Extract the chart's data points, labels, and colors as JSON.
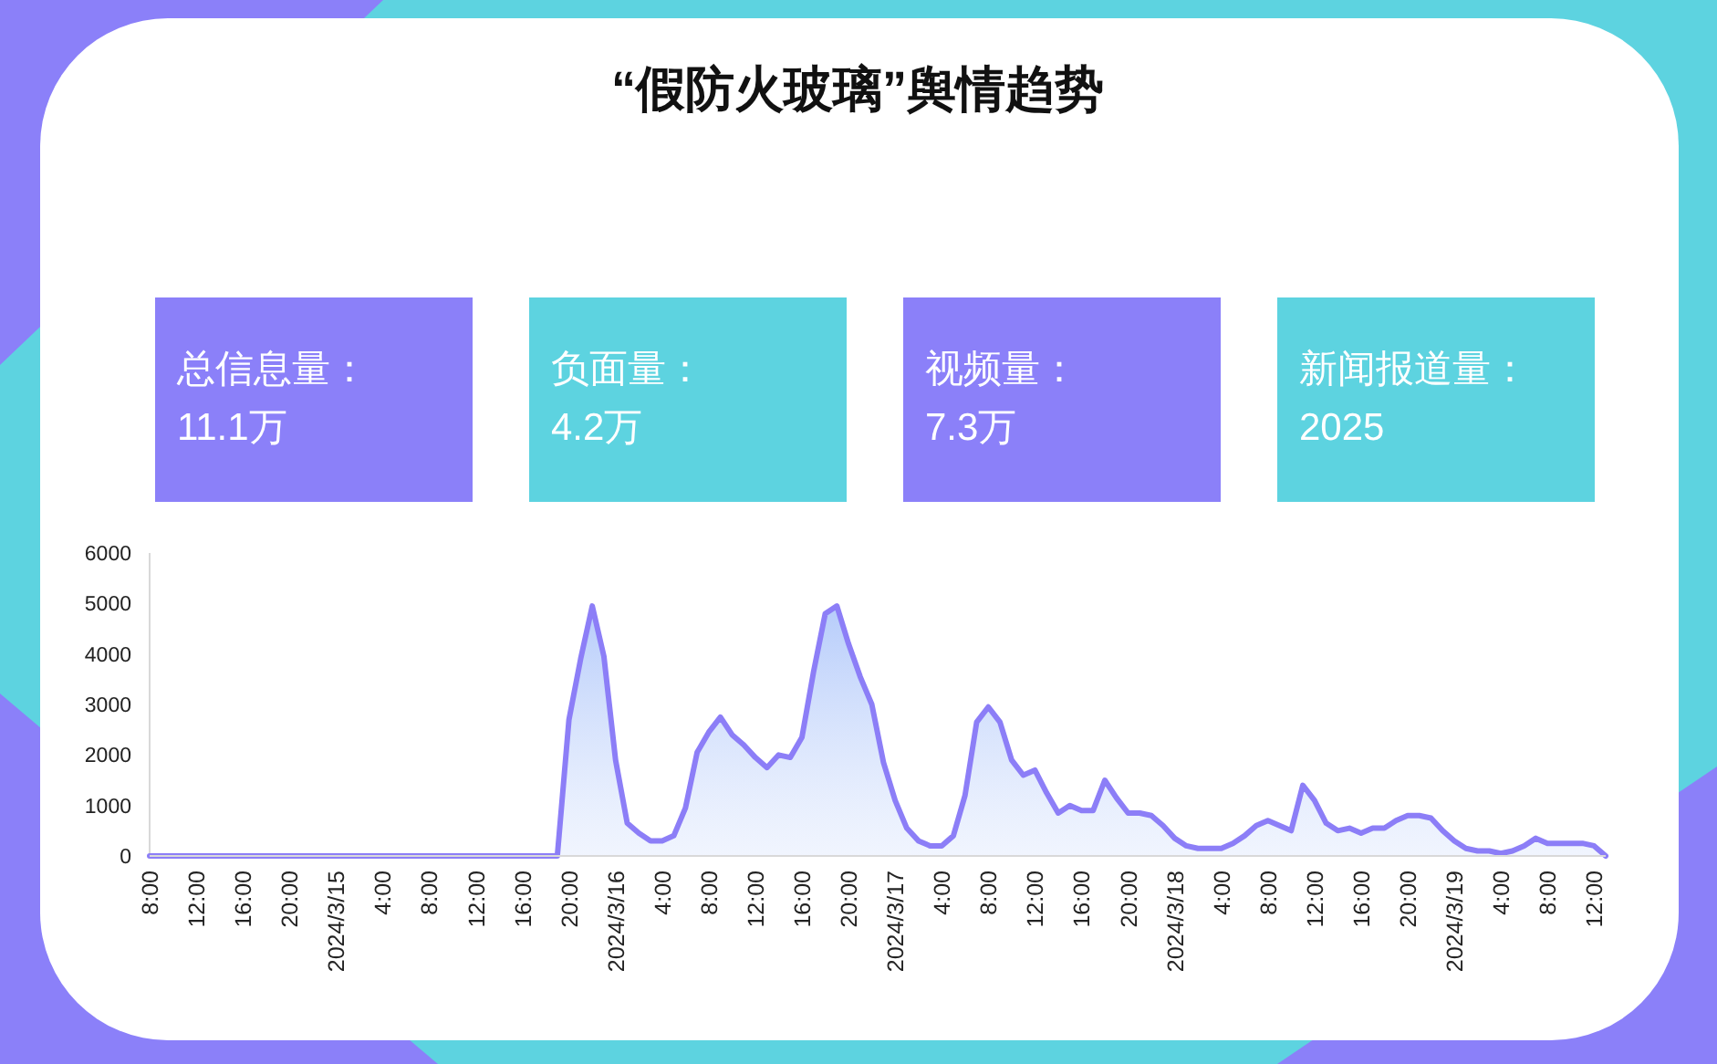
{
  "chart_data": [
    {
      "type": "other",
      "title": "“假防火玻璃”舆情趋势",
      "annotations": [
        "总信息量：",
        "11.1万",
        "负面量：",
        "4.2万",
        "视频量：",
        "7.3万",
        "新闻报道量：",
        "2025"
      ],
      "colors": [
        "#8b80f9",
        "#5dd3e0",
        "#8b80f9",
        "#5dd3e0"
      ]
    },
    {
      "type": "area",
      "x": [
        "2024-03-14T08:00",
        "2024-03-14T09:00",
        "2024-03-14T10:00",
        "2024-03-14T11:00",
        "2024-03-14T12:00",
        "2024-03-14T13:00",
        "2024-03-14T14:00",
        "2024-03-14T15:00",
        "2024-03-14T16:00",
        "2024-03-14T17:00",
        "2024-03-14T18:00",
        "2024-03-14T19:00",
        "2024-03-14T20:00",
        "2024-03-14T21:00",
        "2024-03-14T22:00",
        "2024-03-14T23:00",
        "2024-03-15T00:00",
        "2024-03-15T01:00",
        "2024-03-15T02:00",
        "2024-03-15T03:00",
        "2024-03-15T04:00",
        "2024-03-15T05:00",
        "2024-03-15T06:00",
        "2024-03-15T07:00",
        "2024-03-15T08:00",
        "2024-03-15T09:00",
        "2024-03-15T10:00",
        "2024-03-15T11:00",
        "2024-03-15T12:00",
        "2024-03-15T13:00",
        "2024-03-15T14:00",
        "2024-03-15T15:00",
        "2024-03-15T16:00",
        "2024-03-15T17:00",
        "2024-03-15T18:00",
        "2024-03-15T19:00",
        "2024-03-15T20:00",
        "2024-03-15T21:00",
        "2024-03-15T22:00",
        "2024-03-15T23:00",
        "2024-03-16T00:00",
        "2024-03-16T01:00",
        "2024-03-16T02:00",
        "2024-03-16T03:00",
        "2024-03-16T04:00",
        "2024-03-16T05:00",
        "2024-03-16T06:00",
        "2024-03-16T07:00",
        "2024-03-16T08:00",
        "2024-03-16T09:00",
        "2024-03-16T10:00",
        "2024-03-16T11:00",
        "2024-03-16T12:00",
        "2024-03-16T13:00",
        "2024-03-16T14:00",
        "2024-03-16T15:00",
        "2024-03-16T16:00",
        "2024-03-16T17:00",
        "2024-03-16T18:00",
        "2024-03-16T19:00",
        "2024-03-16T20:00",
        "2024-03-16T21:00",
        "2024-03-16T22:00",
        "2024-03-16T23:00",
        "2024-03-17T00:00",
        "2024-03-17T01:00",
        "2024-03-17T02:00",
        "2024-03-17T03:00",
        "2024-03-17T04:00",
        "2024-03-17T05:00",
        "2024-03-17T06:00",
        "2024-03-17T07:00",
        "2024-03-17T08:00",
        "2024-03-17T09:00",
        "2024-03-17T10:00",
        "2024-03-17T11:00",
        "2024-03-17T12:00",
        "2024-03-17T13:00",
        "2024-03-17T14:00",
        "2024-03-17T15:00",
        "2024-03-17T16:00",
        "2024-03-17T17:00",
        "2024-03-17T18:00",
        "2024-03-17T19:00",
        "2024-03-17T20:00",
        "2024-03-17T21:00",
        "2024-03-17T22:00",
        "2024-03-17T23:00",
        "2024-03-18T00:00",
        "2024-03-18T01:00",
        "2024-03-18T02:00",
        "2024-03-18T03:00",
        "2024-03-18T04:00",
        "2024-03-18T05:00",
        "2024-03-18T06:00",
        "2024-03-18T07:00",
        "2024-03-18T08:00",
        "2024-03-18T09:00",
        "2024-03-18T10:00",
        "2024-03-18T11:00",
        "2024-03-18T12:00",
        "2024-03-18T13:00",
        "2024-03-18T14:00",
        "2024-03-18T15:00",
        "2024-03-18T16:00",
        "2024-03-18T17:00",
        "2024-03-18T18:00",
        "2024-03-18T19:00",
        "2024-03-18T20:00",
        "2024-03-18T21:00",
        "2024-03-18T22:00",
        "2024-03-18T23:00",
        "2024-03-19T00:00",
        "2024-03-19T01:00",
        "2024-03-19T02:00",
        "2024-03-19T03:00",
        "2024-03-19T04:00",
        "2024-03-19T05:00",
        "2024-03-19T06:00",
        "2024-03-19T07:00",
        "2024-03-19T08:00",
        "2024-03-19T09:00",
        "2024-03-19T10:00",
        "2024-03-19T11:00",
        "2024-03-19T12:00",
        "2024-03-19T13:00"
      ],
      "series": [
        {
          "color": "#8c7ef7",
          "values": [
            0,
            0,
            0,
            0,
            0,
            0,
            0,
            0,
            0,
            0,
            0,
            0,
            0,
            0,
            0,
            0,
            0,
            0,
            0,
            0,
            0,
            0,
            0,
            0,
            0,
            0,
            0,
            0,
            0,
            0,
            0,
            0,
            0,
            0,
            0,
            0,
            2700,
            3900,
            4950,
            3950,
            1900,
            650,
            450,
            300,
            300,
            400,
            950,
            2050,
            2450,
            2750,
            2400,
            2200,
            1950,
            1750,
            2000,
            1950,
            2350,
            3650,
            4800,
            4950,
            4200,
            3550,
            3000,
            1850,
            1100,
            550,
            300,
            200,
            200,
            400,
            1200,
            2650,
            2950,
            2650,
            1900,
            1600,
            1700,
            1250,
            850,
            1000,
            900,
            900,
            1500,
            1150,
            850,
            850,
            800,
            600,
            350,
            200,
            150,
            150,
            150,
            250,
            400,
            600,
            700,
            600,
            500,
            1400,
            1100,
            650,
            500,
            550,
            450,
            550,
            550,
            700,
            800,
            800,
            750,
            500,
            300,
            150,
            100,
            100,
            50,
            100,
            200,
            350,
            250,
            250,
            250,
            250,
            200,
            0
          ]
        }
      ],
      "xlim": [
        "2024-03-14T08:00",
        "2024-03-19T13:00"
      ],
      "xticks": [
        {
          "value": "2024-03-14T08:00",
          "label": "8:00"
        },
        {
          "value": "2024-03-14T12:00",
          "label": "12:00"
        },
        {
          "value": "2024-03-14T16:00",
          "label": "16:00"
        },
        {
          "value": "2024-03-14T20:00",
          "label": "20:00"
        },
        {
          "value": "2024-03-15T00:00",
          "label": "2024/3/15"
        },
        {
          "value": "2024-03-15T04:00",
          "label": "4:00"
        },
        {
          "value": "2024-03-15T08:00",
          "label": "8:00"
        },
        {
          "value": "2024-03-15T12:00",
          "label": "12:00"
        },
        {
          "value": "2024-03-15T16:00",
          "label": "16:00"
        },
        {
          "value": "2024-03-15T20:00",
          "label": "20:00"
        },
        {
          "value": "2024-03-16T00:00",
          "label": "2024/3/16"
        },
        {
          "value": "2024-03-16T04:00",
          "label": "4:00"
        },
        {
          "value": "2024-03-16T08:00",
          "label": "8:00"
        },
        {
          "value": "2024-03-16T12:00",
          "label": "12:00"
        },
        {
          "value": "2024-03-16T16:00",
          "label": "16:00"
        },
        {
          "value": "2024-03-16T20:00",
          "label": "20:00"
        },
        {
          "value": "2024-03-17T00:00",
          "label": "2024/3/17"
        },
        {
          "value": "2024-03-17T04:00",
          "label": "4:00"
        },
        {
          "value": "2024-03-17T08:00",
          "label": "8:00"
        },
        {
          "value": "2024-03-17T12:00",
          "label": "12:00"
        },
        {
          "value": "2024-03-17T16:00",
          "label": "16:00"
        },
        {
          "value": "2024-03-17T20:00",
          "label": "20:00"
        },
        {
          "value": "2024-03-18T00:00",
          "label": "2024/3/18"
        },
        {
          "value": "2024-03-18T04:00",
          "label": "4:00"
        },
        {
          "value": "2024-03-18T08:00",
          "label": "8:00"
        },
        {
          "value": "2024-03-18T12:00",
          "label": "12:00"
        },
        {
          "value": "2024-03-18T16:00",
          "label": "16:00"
        },
        {
          "value": "2024-03-18T20:00",
          "label": "20:00"
        },
        {
          "value": "2024-03-19T00:00",
          "label": "2024/3/19"
        },
        {
          "value": "2024-03-19T04:00",
          "label": "4:00"
        },
        {
          "value": "2024-03-19T08:00",
          "label": "8:00"
        },
        {
          "value": "2024-03-19T12:00",
          "label": "12:00"
        }
      ],
      "ylim": [
        0,
        6000
      ],
      "yticks": [
        0,
        1000,
        2000,
        3000,
        4000,
        5000,
        6000
      ],
      "grid": false
    }
  ]
}
